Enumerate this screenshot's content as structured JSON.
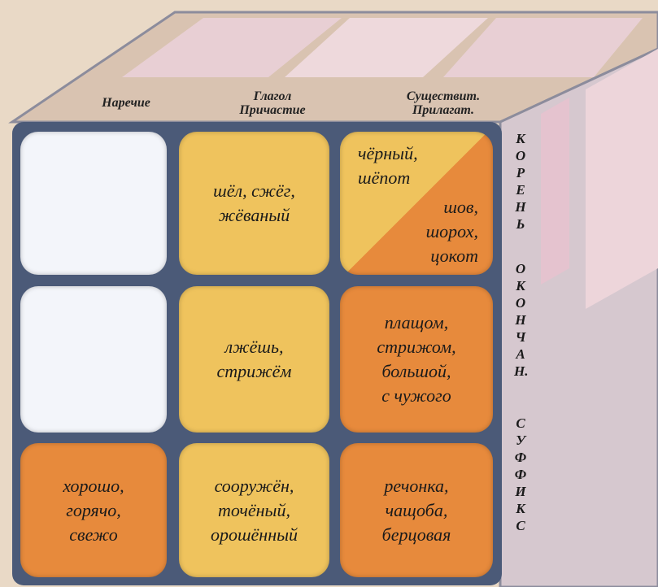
{
  "headers": {
    "adverb": [
      "Наречие"
    ],
    "verb": [
      "Глагол",
      "Причастие"
    ],
    "noun": [
      "Существит.",
      "Прилагат."
    ]
  },
  "rows": [
    {
      "label": "КОРЕНЬ",
      "cells": {
        "verb": [
          "шёл, сжёг,",
          "жёваный"
        ],
        "noun": {
          "top": [
            "чёрный,",
            "шёпот"
          ],
          "bottom": [
            "шов,",
            "шорох,",
            "цокот"
          ]
        }
      }
    },
    {
      "label": "ОКОНЧАН.",
      "cells": {
        "verb": [
          "лжёшь,",
          "стрижём"
        ],
        "noun": [
          "плащом,",
          "стрижом,",
          "большой,",
          "с чужого"
        ]
      }
    },
    {
      "label": "СУФФИКС",
      "cells": {
        "adverb": [
          "хорошо,",
          "горячо,",
          "свежо"
        ],
        "verb": [
          "сооружён,",
          "точёный,",
          "орошённый"
        ],
        "noun": [
          "речонка,",
          "чащоба,",
          "берцовая"
        ]
      }
    }
  ]
}
